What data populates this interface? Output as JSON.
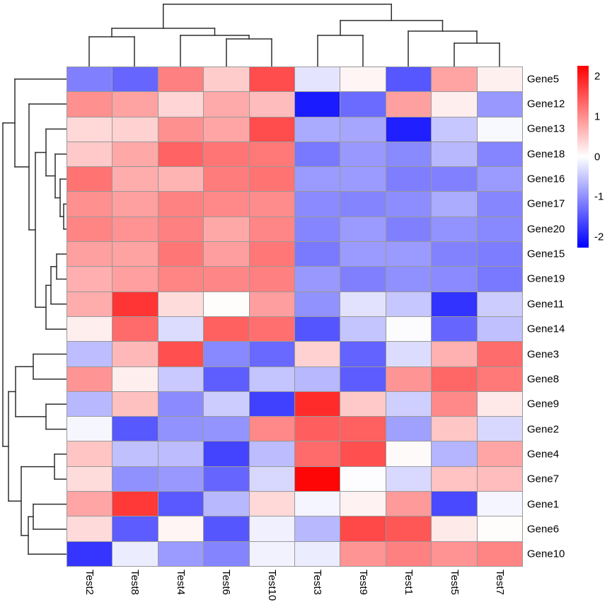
{
  "figure": {
    "kind": "clustered heatmap (pheatmap-style)",
    "background": "#ffffff"
  },
  "chart_data": {
    "type": "heatmap",
    "columns": [
      "Test2",
      "Test8",
      "Test4",
      "Test6",
      "Test10",
      "Test3",
      "Test9",
      "Test1",
      "Test5",
      "Test7"
    ],
    "rows": [
      "Gene5",
      "Gene12",
      "Gene13",
      "Gene18",
      "Gene16",
      "Gene17",
      "Gene20",
      "Gene15",
      "Gene19",
      "Gene11",
      "Gene14",
      "Gene3",
      "Gene8",
      "Gene9",
      "Gene2",
      "Gene4",
      "Gene7",
      "Gene1",
      "Gene6",
      "Gene10"
    ],
    "values": [
      [
        -1.1,
        -1.32,
        1.1,
        0.44,
        1.54,
        -0.23,
        0.09,
        -1.45,
        0.79,
        0.13
      ],
      [
        0.96,
        0.8,
        0.36,
        0.73,
        0.58,
        -1.97,
        -1.28,
        0.82,
        0.15,
        -0.89
      ],
      [
        0.34,
        0.4,
        0.96,
        0.78,
        1.54,
        -0.73,
        -0.77,
        -1.93,
        -0.48,
        -0.06
      ],
      [
        0.47,
        0.75,
        1.35,
        1.19,
        1.16,
        -1.16,
        -0.89,
        -1.01,
        -0.61,
        -1.05
      ],
      [
        1.21,
        0.72,
        0.65,
        1.13,
        1.21,
        -0.87,
        -0.86,
        -1.11,
        -1.09,
        -0.87
      ],
      [
        0.96,
        0.82,
        1.08,
        1.03,
        0.99,
        -1.0,
        -1.06,
        -0.98,
        -0.72,
        -1.04
      ],
      [
        1.05,
        0.93,
        1.1,
        0.75,
        1.04,
        -1.05,
        -0.86,
        -1.1,
        -0.93,
        -1.03
      ],
      [
        0.82,
        0.8,
        1.18,
        0.84,
        1.17,
        -1.15,
        -0.86,
        -0.87,
        -1.08,
        -1.12
      ],
      [
        0.69,
        0.83,
        1.06,
        1.04,
        1.1,
        -0.89,
        -1.1,
        -0.96,
        -1.0,
        -1.16
      ],
      [
        0.72,
        1.74,
        0.3,
        0.03,
        0.84,
        -0.94,
        -0.25,
        -0.48,
        -1.76,
        -0.44
      ],
      [
        0.15,
        1.28,
        -0.3,
        1.37,
        1.24,
        -1.47,
        -0.51,
        -0.03,
        -1.32,
        -0.54
      ],
      [
        -0.57,
        0.61,
        1.52,
        -1.03,
        -1.29,
        0.4,
        -1.35,
        -0.3,
        0.68,
        1.27
      ],
      [
        0.92,
        0.15,
        -0.47,
        -1.39,
        -0.51,
        -0.61,
        -1.41,
        0.92,
        1.32,
        1.16
      ],
      [
        -0.61,
        0.54,
        -1.0,
        -0.44,
        -1.65,
        1.83,
        0.47,
        -0.41,
        1.03,
        0.2
      ],
      [
        -0.08,
        -1.44,
        -0.94,
        -0.92,
        1.03,
        1.39,
        1.37,
        -0.82,
        0.49,
        -0.34
      ],
      [
        0.51,
        -0.54,
        -0.58,
        -1.61,
        -0.58,
        1.28,
        1.52,
        0.04,
        -0.64,
        0.78
      ],
      [
        0.3,
        -0.96,
        -0.89,
        -1.32,
        -0.34,
        2.15,
        -0.02,
        -0.33,
        0.52,
        0.57
      ],
      [
        0.78,
        1.72,
        -1.43,
        -0.61,
        0.34,
        -0.09,
        0.11,
        0.87,
        -1.57,
        -0.09
      ],
      [
        0.32,
        -1.41,
        0.09,
        -1.46,
        -0.13,
        -0.61,
        1.58,
        1.46,
        0.18,
        0.03
      ],
      [
        -1.74,
        -0.16,
        -0.87,
        -1.06,
        -0.11,
        -0.16,
        0.92,
        1.1,
        0.94,
        1.06
      ]
    ],
    "colormap": {
      "low": "#0000FF",
      "mid": "#FFFFFF",
      "high": "#FF0000",
      "limits": [
        -2.2,
        2.2
      ]
    },
    "grid_color": "#999999",
    "legend": {
      "ticks": [
        2,
        1,
        0,
        -1,
        -2
      ]
    },
    "clustering": {
      "rows": true,
      "columns": true
    }
  },
  "dendrograms": {
    "line_color": "#2e2e2e",
    "top": {
      "segments": [
        [
          126,
          94,
          126,
          52
        ],
        [
          126,
          52,
          190,
          52
        ],
        [
          190,
          52,
          190,
          94
        ],
        [
          320,
          94,
          320,
          55
        ],
        [
          320,
          55,
          384,
          55
        ],
        [
          384,
          55,
          384,
          94
        ],
        [
          255,
          94,
          255,
          50
        ],
        [
          255,
          50,
          352,
          50
        ],
        [
          352,
          50,
          352,
          55
        ],
        [
          158,
          52,
          158,
          40
        ],
        [
          158,
          40,
          303.5,
          40
        ],
        [
          303.5,
          40,
          303.5,
          50
        ],
        [
          449,
          94,
          449,
          50
        ],
        [
          449,
          50,
          513,
          50
        ],
        [
          513,
          50,
          513,
          94
        ],
        [
          642,
          94,
          642,
          61
        ],
        [
          642,
          61,
          706,
          61
        ],
        [
          706,
          61,
          706,
          94
        ],
        [
          577,
          94,
          577,
          44
        ],
        [
          577,
          44,
          674,
          44
        ],
        [
          674,
          44,
          674,
          61
        ],
        [
          481,
          50,
          481,
          29
        ],
        [
          481,
          29,
          625.5,
          29
        ],
        [
          625.5,
          29,
          625.5,
          44
        ],
        [
          230.75,
          40,
          230.75,
          6
        ],
        [
          230.75,
          6,
          553.25,
          6
        ],
        [
          553.25,
          6,
          553.25,
          29
        ]
      ]
    },
    "left": {
      "segments": [
        [
          94,
          288.4,
          90,
          288.4
        ],
        [
          90,
          288.4,
          90,
          323.8
        ],
        [
          90,
          323.8,
          94,
          323.8
        ],
        [
          94,
          253.1,
          85,
          253.1
        ],
        [
          85,
          253.1,
          85,
          306.1
        ],
        [
          85,
          306.1,
          90,
          306.1
        ],
        [
          94,
          217.7,
          78,
          217.7
        ],
        [
          78,
          217.7,
          78,
          279.6
        ],
        [
          78,
          279.6,
          85,
          279.6
        ],
        [
          94,
          182.4,
          65,
          182.4
        ],
        [
          65,
          182.4,
          65,
          248.6
        ],
        [
          65,
          248.6,
          78,
          248.6
        ],
        [
          94,
          359.1,
          80,
          359.1
        ],
        [
          80,
          359.1,
          80,
          394.5
        ],
        [
          80,
          394.5,
          94,
          394.5
        ],
        [
          94,
          429.8,
          72,
          429.8
        ],
        [
          72,
          376.8,
          72,
          429.8
        ],
        [
          72,
          376.8,
          80,
          376.8
        ],
        [
          94,
          465.2,
          65,
          465.2
        ],
        [
          65,
          403.3,
          65,
          465.2
        ],
        [
          65,
          403.3,
          72,
          403.3
        ],
        [
          50,
          215.5,
          65,
          215.5
        ],
        [
          50,
          215.5,
          50,
          434.2
        ],
        [
          50,
          434.2,
          65,
          434.2
        ],
        [
          94,
          147.0,
          41,
          147.0
        ],
        [
          41,
          147.0,
          41,
          324.9
        ],
        [
          41,
          324.9,
          50,
          324.9
        ],
        [
          94,
          111.7,
          21,
          111.7
        ],
        [
          21,
          111.7,
          21,
          235.9
        ],
        [
          21,
          235.9,
          41,
          235.9
        ],
        [
          94,
          500.5,
          47,
          500.5
        ],
        [
          47,
          500.5,
          47,
          535.9
        ],
        [
          47,
          535.9,
          94,
          535.9
        ],
        [
          94,
          571.2,
          65,
          571.2
        ],
        [
          65,
          571.2,
          65,
          606.6
        ],
        [
          65,
          606.6,
          94,
          606.6
        ],
        [
          22,
          518.2,
          47,
          518.2
        ],
        [
          22,
          518.2,
          22,
          588.9
        ],
        [
          22,
          588.9,
          65,
          588.9
        ],
        [
          94,
          641.9,
          77,
          641.9
        ],
        [
          77,
          641.9,
          77,
          677.3
        ],
        [
          77,
          677.3,
          94,
          677.3
        ],
        [
          94,
          712.6,
          47,
          712.6
        ],
        [
          47,
          712.6,
          47,
          748.0
        ],
        [
          47,
          748.0,
          94,
          748.0
        ],
        [
          94,
          783.3,
          40,
          783.3
        ],
        [
          40,
          730.3,
          40,
          783.3
        ],
        [
          40,
          730.3,
          47,
          730.3
        ],
        [
          30,
          659.6,
          77,
          659.6
        ],
        [
          30,
          659.6,
          30,
          756.8
        ],
        [
          30,
          756.8,
          40,
          756.8
        ],
        [
          12,
          553.5,
          22,
          553.5
        ],
        [
          12,
          553.5,
          12,
          708.2
        ],
        [
          12,
          708.2,
          30,
          708.2
        ],
        [
          4,
          173.8,
          21,
          173.8
        ],
        [
          4,
          173.8,
          4,
          630.9
        ],
        [
          4,
          630.9,
          12,
          630.9
        ]
      ]
    }
  }
}
